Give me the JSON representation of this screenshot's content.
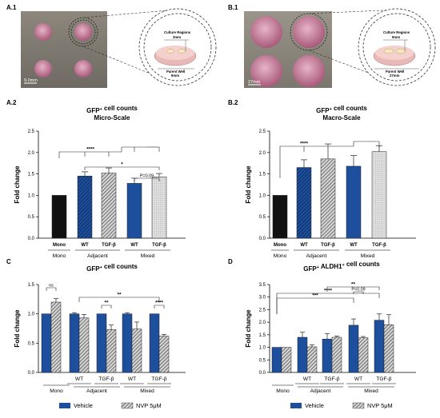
{
  "colors": {
    "black_bar": "#111111",
    "blue": "#1d4f9c",
    "gray_hatch": "#7a7a7a",
    "light_dot": "#d8d8d8",
    "well_pink": "#c8889e",
    "well_bg": "#8c8478"
  },
  "panels": {
    "a1": {
      "label": "A.1",
      "scale_bar": "9.0mm",
      "culture_label": "Culture Regions",
      "culture_size": "3mm",
      "parent_label": "Parent Well",
      "parent_size": "9mm"
    },
    "b1": {
      "label": "B.1",
      "scale_bar": "27mm",
      "culture_label": "Culture Regions",
      "culture_size": "9mm",
      "parent_label": "Parent Well",
      "parent_size": "27mm"
    }
  },
  "chart_data": [
    {
      "panel": "A.2",
      "type": "bar",
      "title": "GFP+ cell counts",
      "subtitle": "Micro-Scale",
      "ylabel": "Fold change",
      "ylim": [
        0,
        2.5
      ],
      "yticks": [
        "0.0",
        "0.5",
        "1.0",
        "1.5",
        "2.0",
        "2.5"
      ],
      "categories": [
        "Mono",
        "WT",
        "TGF-β",
        "WT",
        "TGF-β"
      ],
      "values": [
        1.0,
        1.45,
        1.52,
        1.28,
        1.43
      ],
      "errors": [
        0,
        0.1,
        0.12,
        0.12,
        0.08
      ],
      "groups": [
        "Mono",
        "Adjacent",
        "Mixed"
      ],
      "annotations": [
        "****",
        "*",
        "P=0.09"
      ]
    },
    {
      "panel": "B.2",
      "type": "bar",
      "title": "GFP+ cell counts",
      "subtitle": "Macro-Scale",
      "ylabel": "Fold change",
      "ylim": [
        0,
        2.5
      ],
      "yticks": [
        "0.0",
        "0.5",
        "1.0",
        "1.5",
        "2.0",
        "2.5"
      ],
      "categories": [
        "Mono",
        "WT",
        "TGF-β",
        "WT",
        "TGF-β"
      ],
      "values": [
        1.0,
        1.65,
        1.85,
        1.68,
        2.02
      ],
      "errors": [
        0,
        0.18,
        0.35,
        0.25,
        0.14
      ],
      "groups": [
        "Mono",
        "Adjacent",
        "Mixed"
      ],
      "annotations": [
        "****"
      ]
    },
    {
      "panel": "C",
      "type": "bar",
      "title": "GFP+ cell counts",
      "ylabel": "Fold change",
      "ylim": [
        0,
        1.5
      ],
      "yticks": [
        "0.0",
        "0.5",
        "1.0",
        "1.5"
      ],
      "categories": [
        "Mono",
        "WT",
        "TGF-β",
        "WT",
        "TGF-β"
      ],
      "groups": [
        "Mono",
        "Adjacent",
        "Mixed"
      ],
      "series": [
        {
          "name": "Vehicle",
          "values": [
            1.0,
            1.0,
            1.0,
            1.0,
            1.0
          ],
          "errors": [
            0,
            0.02,
            0,
            0.02,
            0
          ]
        },
        {
          "name": "NVP 5μM",
          "values": [
            1.2,
            0.93,
            0.73,
            0.74,
            0.62
          ],
          "errors": [
            0.06,
            0.06,
            0.08,
            0.12,
            0.03
          ]
        }
      ],
      "annotations": [
        "ns",
        "**",
        "**",
        "****"
      ]
    },
    {
      "panel": "D",
      "type": "bar",
      "title": "GFP+ ALDH1+ cell counts",
      "ylabel": "Fold change",
      "ylim": [
        0,
        3.5
      ],
      "yticks": [
        "0.0",
        "0.5",
        "1.0",
        "1.5",
        "2.0",
        "2.5",
        "3.0",
        "3.5"
      ],
      "categories": [
        "Mono",
        "WT",
        "TGF-β",
        "WT",
        "TGF-β"
      ],
      "groups": [
        "Mono",
        "Adjacent",
        "Mixed"
      ],
      "series": [
        {
          "name": "Vehicle",
          "values": [
            1.0,
            1.4,
            1.33,
            1.88,
            2.08
          ],
          "errors": [
            0,
            0.2,
            0.22,
            0.25,
            0.25
          ]
        },
        {
          "name": "NVP 5μM",
          "values": [
            1.0,
            1.02,
            1.4,
            1.38,
            1.9
          ],
          "errors": [
            0,
            0.08,
            0.05,
            0.05,
            0.4
          ]
        }
      ],
      "annotations": [
        "***",
        "****",
        "**",
        "P=0.09"
      ]
    }
  ]
}
